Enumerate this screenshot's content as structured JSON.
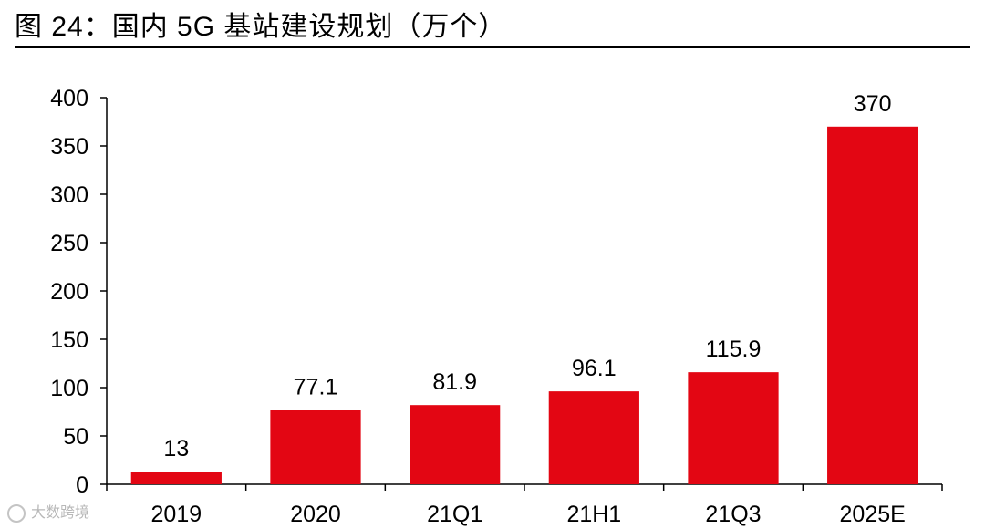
{
  "title": "图 24：国内 5G 基站建设规划（万个）",
  "watermark": "大数跨境",
  "colors": {
    "bar": "#e30613",
    "axis": "#000000"
  },
  "chart_data": {
    "type": "bar",
    "title": "国内 5G 基站建设规划（万个）",
    "categories": [
      "2019",
      "2020",
      "21Q1",
      "21H1",
      "21Q3",
      "2025E"
    ],
    "values": [
      13,
      77.1,
      81.9,
      96.1,
      115.9,
      370
    ],
    "data_labels": [
      "13",
      "77.1",
      "81.9",
      "96.1",
      "115.9",
      "370"
    ],
    "ylim": [
      0,
      400
    ],
    "yticks": [
      0,
      50,
      100,
      150,
      200,
      250,
      300,
      350,
      400
    ],
    "grid": false,
    "legend": "none"
  }
}
